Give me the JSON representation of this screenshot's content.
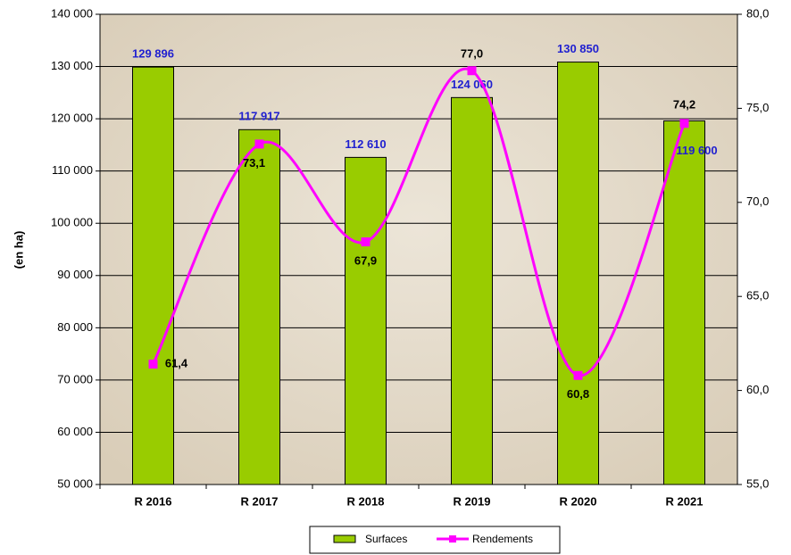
{
  "chart_data": {
    "type": "bar",
    "y_label": "(en ha)",
    "categories": [
      "R 2016",
      "R 2017",
      "R 2018",
      "R 2019",
      "R 2020",
      "R 2021"
    ],
    "series": [
      {
        "name": "Surfaces",
        "color": "#99cc00",
        "values": [
          129896,
          117917,
          112610,
          124060,
          130850,
          119600
        ],
        "value_labels": [
          "129 896",
          "117 917",
          "112 610",
          "124 060",
          "130 850",
          "119 600"
        ],
        "label_color": "#1f1fd0"
      },
      {
        "name": "Rendements",
        "type": "line",
        "smooth": true,
        "color": "#ff00ff",
        "axis": "y2",
        "values": [
          61.4,
          73.1,
          67.9,
          77.0,
          60.8,
          74.2
        ],
        "value_labels": [
          "61,4",
          "73,1",
          "67,9",
          "77,0",
          "60,8",
          "74,2"
        ],
        "label_color": "#000000"
      }
    ],
    "ylim": [
      50000,
      140000
    ],
    "yticks": [
      {
        "value": 50000,
        "label": "50 000"
      },
      {
        "value": 60000,
        "label": "60 000"
      },
      {
        "value": 70000,
        "label": "70 000"
      },
      {
        "value": 80000,
        "label": "80 000"
      },
      {
        "value": 90000,
        "label": "90 000"
      },
      {
        "value": 100000,
        "label": "100 000"
      },
      {
        "value": 110000,
        "label": "110 000"
      },
      {
        "value": 120000,
        "label": "120 000"
      },
      {
        "value": 130000,
        "label": "130 000"
      },
      {
        "value": 140000,
        "label": "140 000"
      }
    ],
    "y2lim": [
      55,
      80
    ],
    "y2ticks": [
      {
        "value": 55,
        "label": "55,0"
      },
      {
        "value": 60,
        "label": "60,0"
      },
      {
        "value": 65,
        "label": "65,0"
      },
      {
        "value": 70,
        "label": "70,0"
      },
      {
        "value": 75,
        "label": "75,0"
      },
      {
        "value": 80,
        "label": "80,0"
      }
    ],
    "grid": true,
    "legend": "bottom"
  }
}
